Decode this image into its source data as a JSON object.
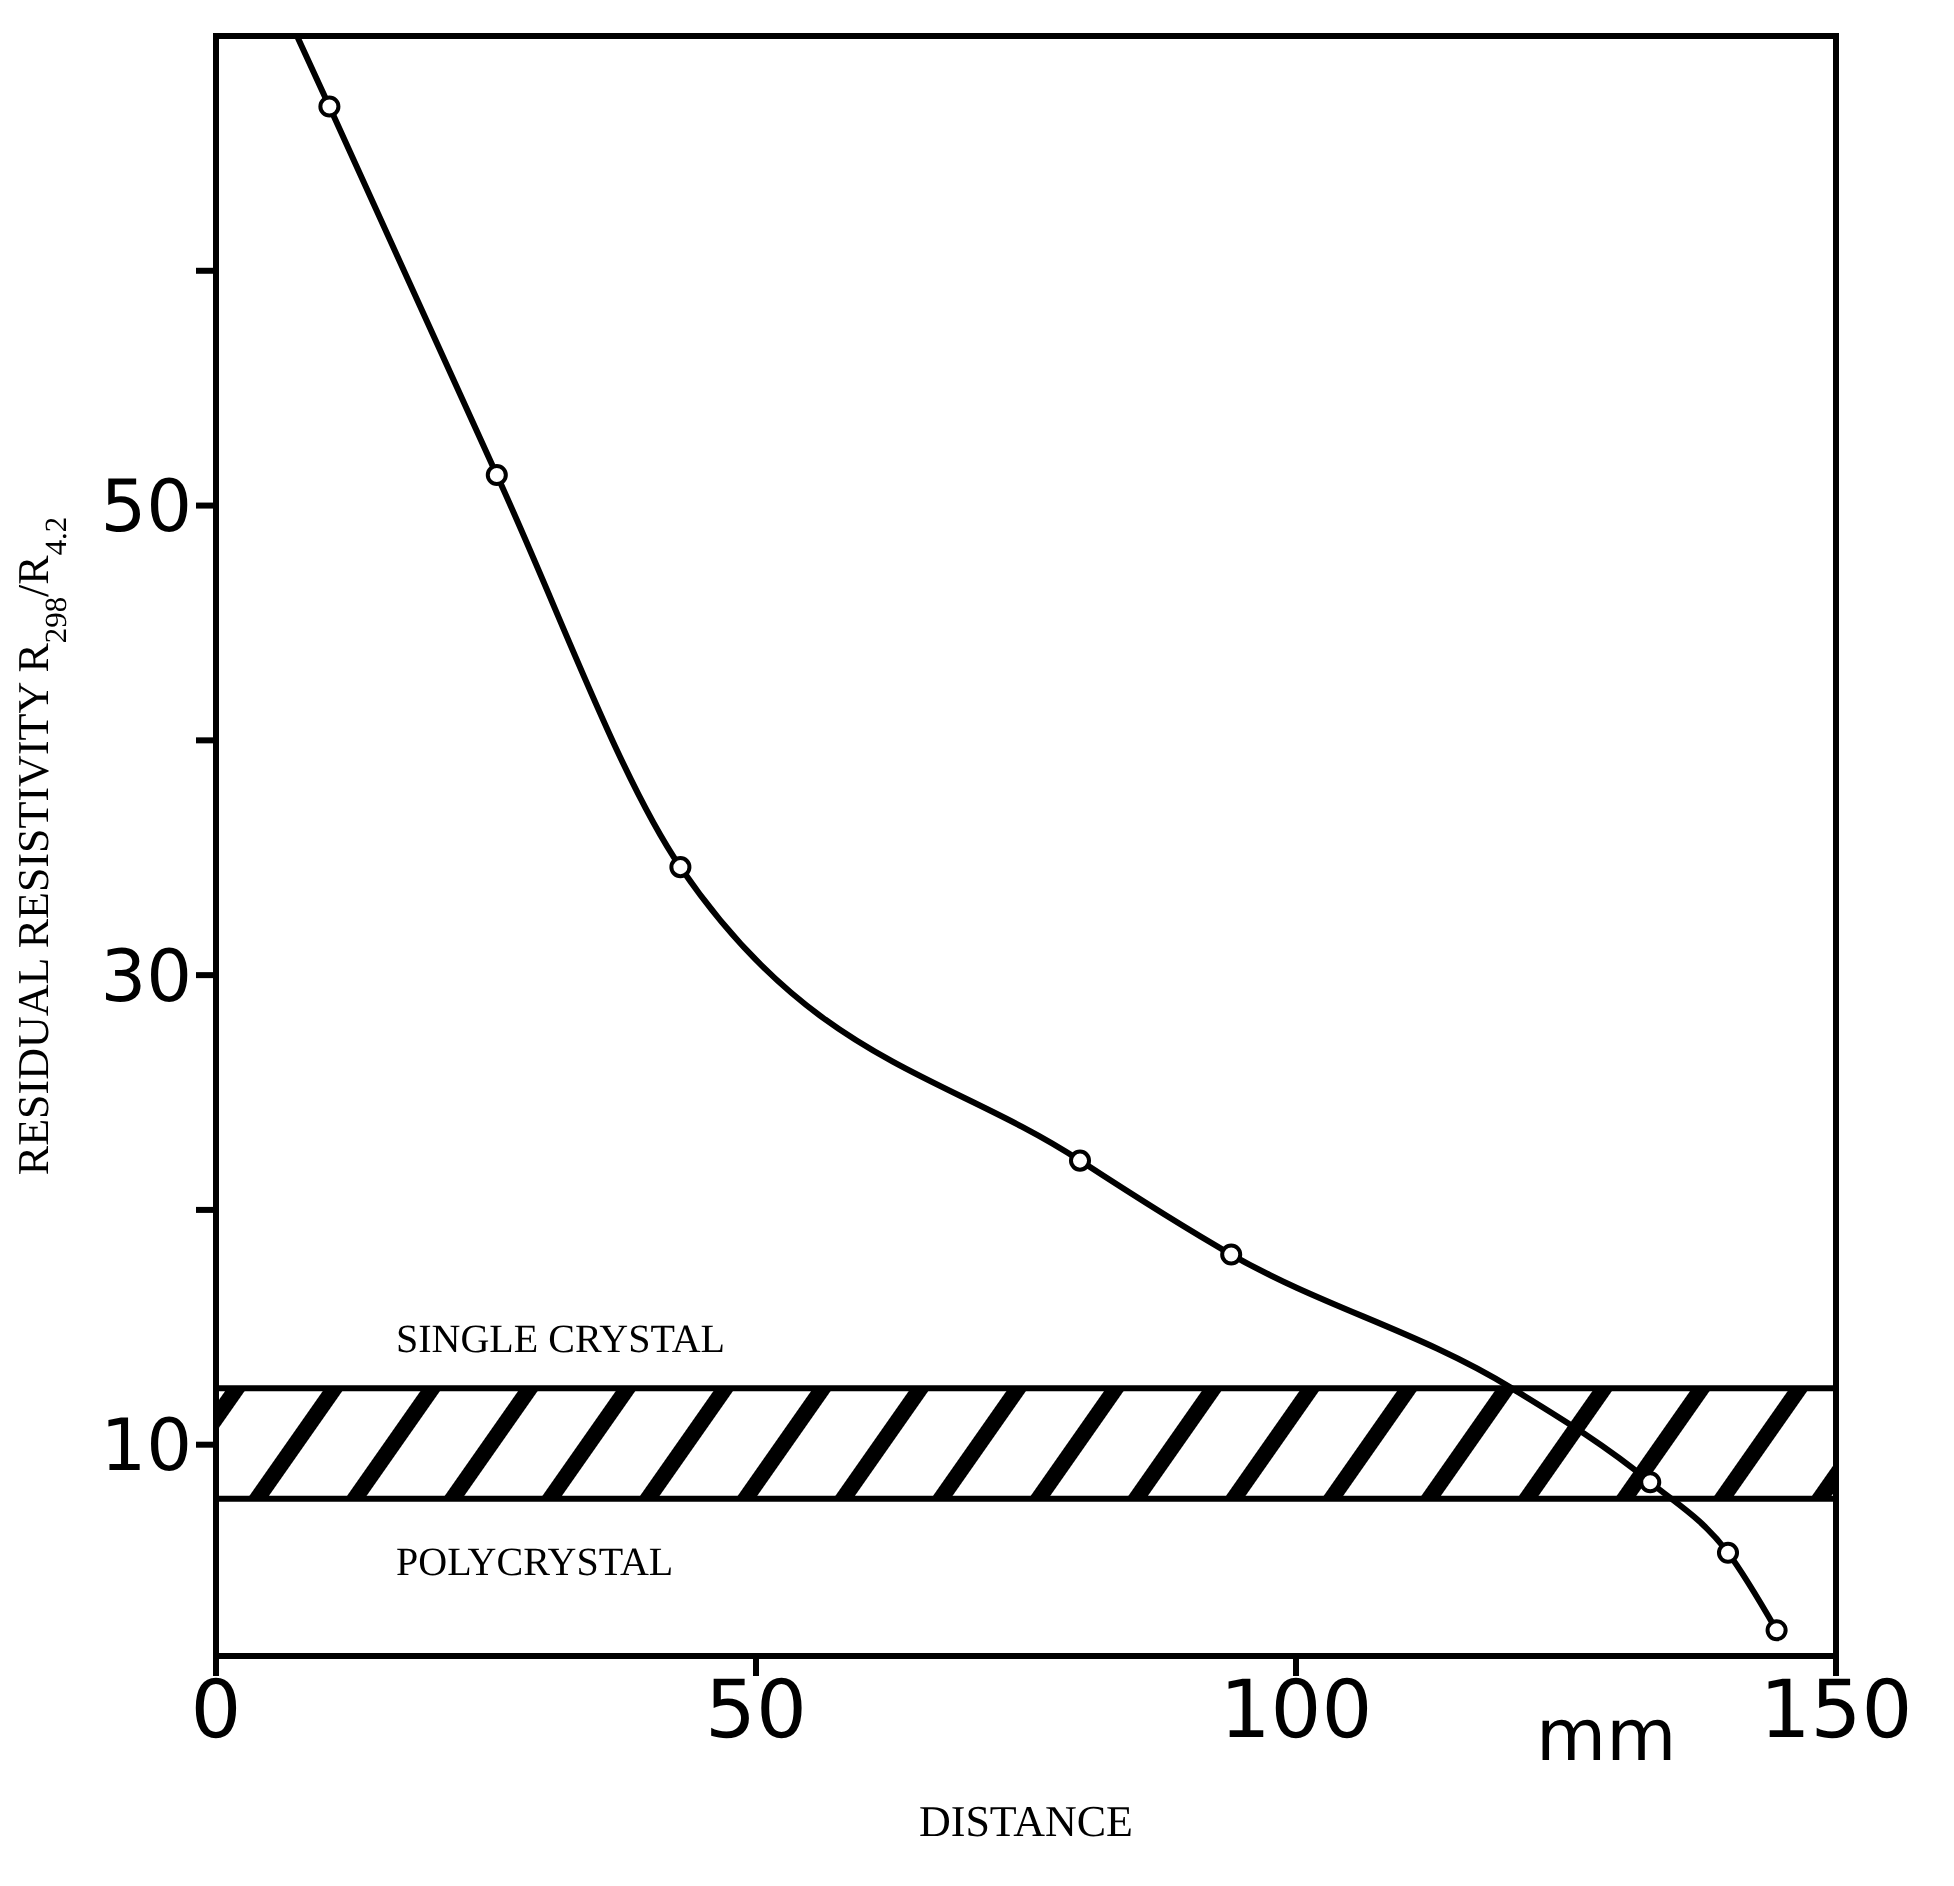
{
  "chart_data": {
    "type": "line",
    "xlabel": "DISTANCE",
    "ylabel": "RESIDUAL  RESISTIVITY  R$_{298}$/R$_{4.2}$",
    "xlim": [
      0,
      150
    ],
    "ylim": [
      1,
      70
    ],
    "xticks": [
      0,
      50,
      100,
      150
    ],
    "yticks": [
      10,
      {
        "value": 20,
        "label": null
      },
      30,
      {
        "value": 40,
        "label": null
      },
      50,
      {
        "value": 60,
        "label": null
      }
    ],
    "series": [
      {
        "color": "#000000",
        "marker": "none",
        "x": [
          7.5,
          10.5,
          26,
          43,
          80,
          94,
          120,
          132.8,
          140,
          144.5
        ],
        "values": [
          70,
          67,
          51.3,
          34.6,
          22.1,
          18.1,
          12.4,
          8.4,
          5.4,
          2.1
        ]
      },
      {
        "type": "scatter",
        "color": "#000000",
        "marker": "circle",
        "x": [
          10.5,
          26,
          43,
          80,
          94,
          132.8,
          140,
          144.5
        ],
        "values": [
          67,
          51.3,
          34.6,
          22.1,
          18.1,
          8.4,
          5.4,
          2.1
        ]
      }
    ],
    "bands": [
      {
        "axis": "y",
        "from": 7.7,
        "to": 12.4,
        "color": "#000000"
      }
    ],
    "annotations": [
      "SINGLE CRYSTAL",
      "POLYCRYSTAL",
      "mm"
    ]
  }
}
